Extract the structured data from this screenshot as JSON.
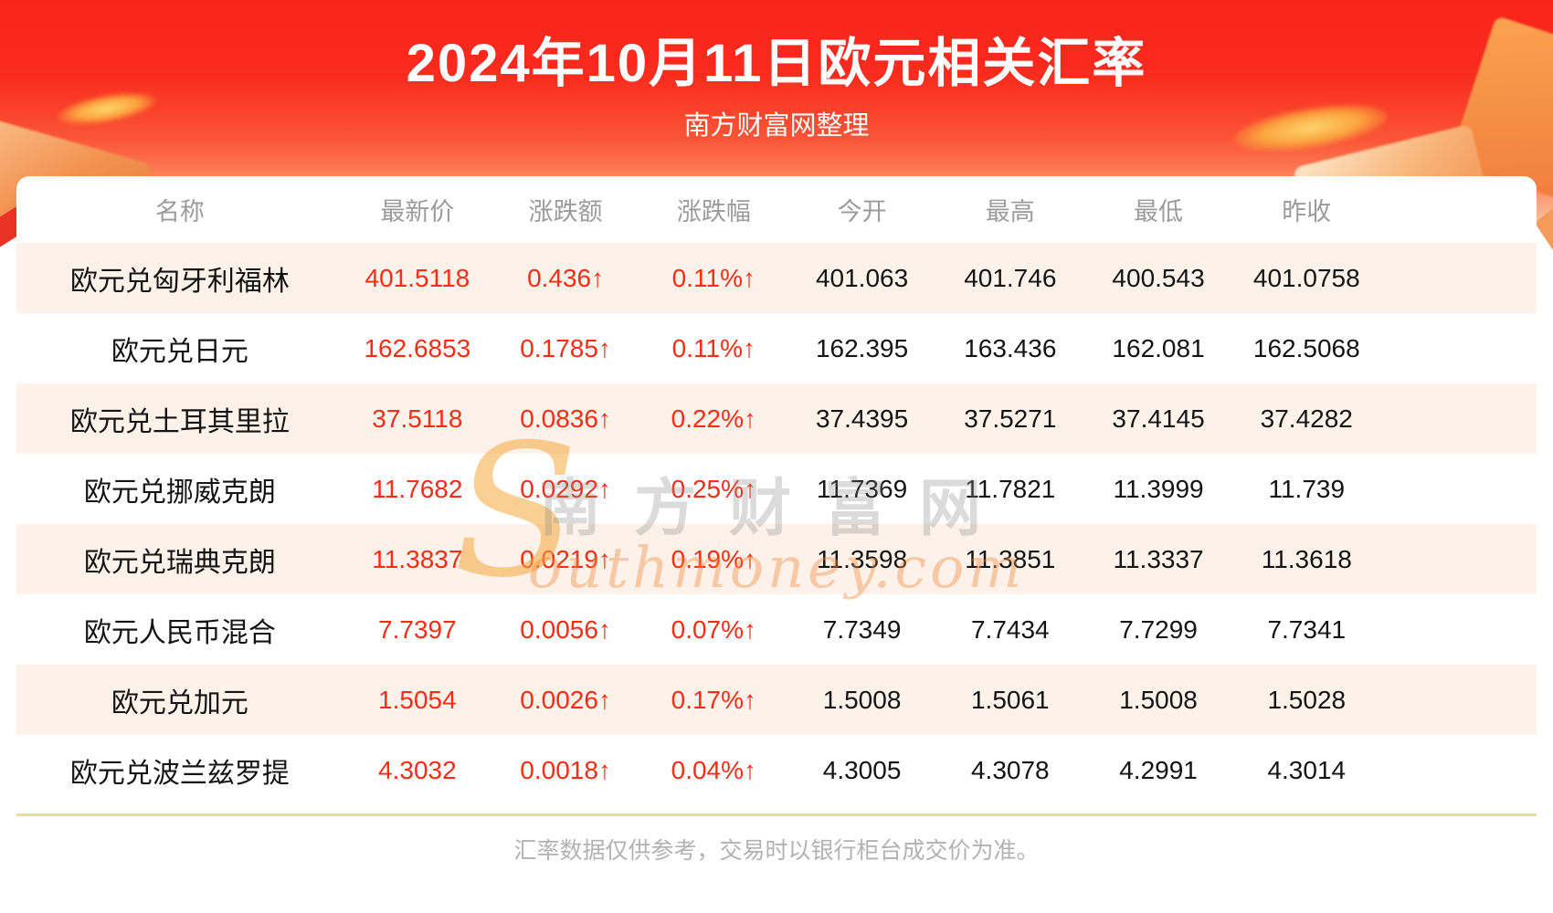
{
  "banner": {
    "title": "2024年10月11日欧元相关汇率",
    "subtitle": "南方财富网整理"
  },
  "table": {
    "columns": [
      "名称",
      "最新价",
      "涨跌额",
      "涨跌幅",
      "今开",
      "最高",
      "最低",
      "昨收"
    ],
    "rows": [
      {
        "name": "欧元兑匈牙利福林",
        "latest": "401.5118",
        "change": "0.436↑",
        "change_pct": "0.11%↑",
        "open": "401.063",
        "high": "401.746",
        "low": "400.543",
        "prev_close": "401.0758"
      },
      {
        "name": "欧元兑日元",
        "latest": "162.6853",
        "change": "0.1785↑",
        "change_pct": "0.11%↑",
        "open": "162.395",
        "high": "163.436",
        "low": "162.081",
        "prev_close": "162.5068"
      },
      {
        "name": "欧元兑土耳其里拉",
        "latest": "37.5118",
        "change": "0.0836↑",
        "change_pct": "0.22%↑",
        "open": "37.4395",
        "high": "37.5271",
        "low": "37.4145",
        "prev_close": "37.4282"
      },
      {
        "name": "欧元兑挪威克朗",
        "latest": "11.7682",
        "change": "0.0292↑",
        "change_pct": "0.25%↑",
        "open": "11.7369",
        "high": "11.7821",
        "low": "11.3999",
        "prev_close": "11.739"
      },
      {
        "name": "欧元兑瑞典克朗",
        "latest": "11.3837",
        "change": "0.0219↑",
        "change_pct": "0.19%↑",
        "open": "11.3598",
        "high": "11.3851",
        "low": "11.3337",
        "prev_close": "11.3618"
      },
      {
        "name": "欧元人民币混合",
        "latest": "7.7397",
        "change": "0.0056↑",
        "change_pct": "0.07%↑",
        "open": "7.7349",
        "high": "7.7434",
        "low": "7.7299",
        "prev_close": "7.7341"
      },
      {
        "name": "欧元兑加元",
        "latest": "1.5054",
        "change": "0.0026↑",
        "change_pct": "0.17%↑",
        "open": "1.5008",
        "high": "1.5061",
        "low": "1.5008",
        "prev_close": "1.5028"
      },
      {
        "name": "欧元兑波兰兹罗提",
        "latest": "4.3032",
        "change": "0.0018↑",
        "change_pct": "0.04%↑",
        "open": "4.3005",
        "high": "4.3078",
        "low": "4.2991",
        "prev_close": "4.3014"
      }
    ]
  },
  "watermark": {
    "s": "S",
    "cn": "南方财富网",
    "en": "outhmoney.com"
  },
  "footer": {
    "disclaimer": "汇率数据仅供参考，交易时以银行柜台成交价为准。"
  },
  "colors": {
    "up_red": "#fa2c16",
    "banner_red": "#f9231a",
    "row_stripe": "#fcf2ea",
    "header_gray": "#9b9b9b"
  }
}
